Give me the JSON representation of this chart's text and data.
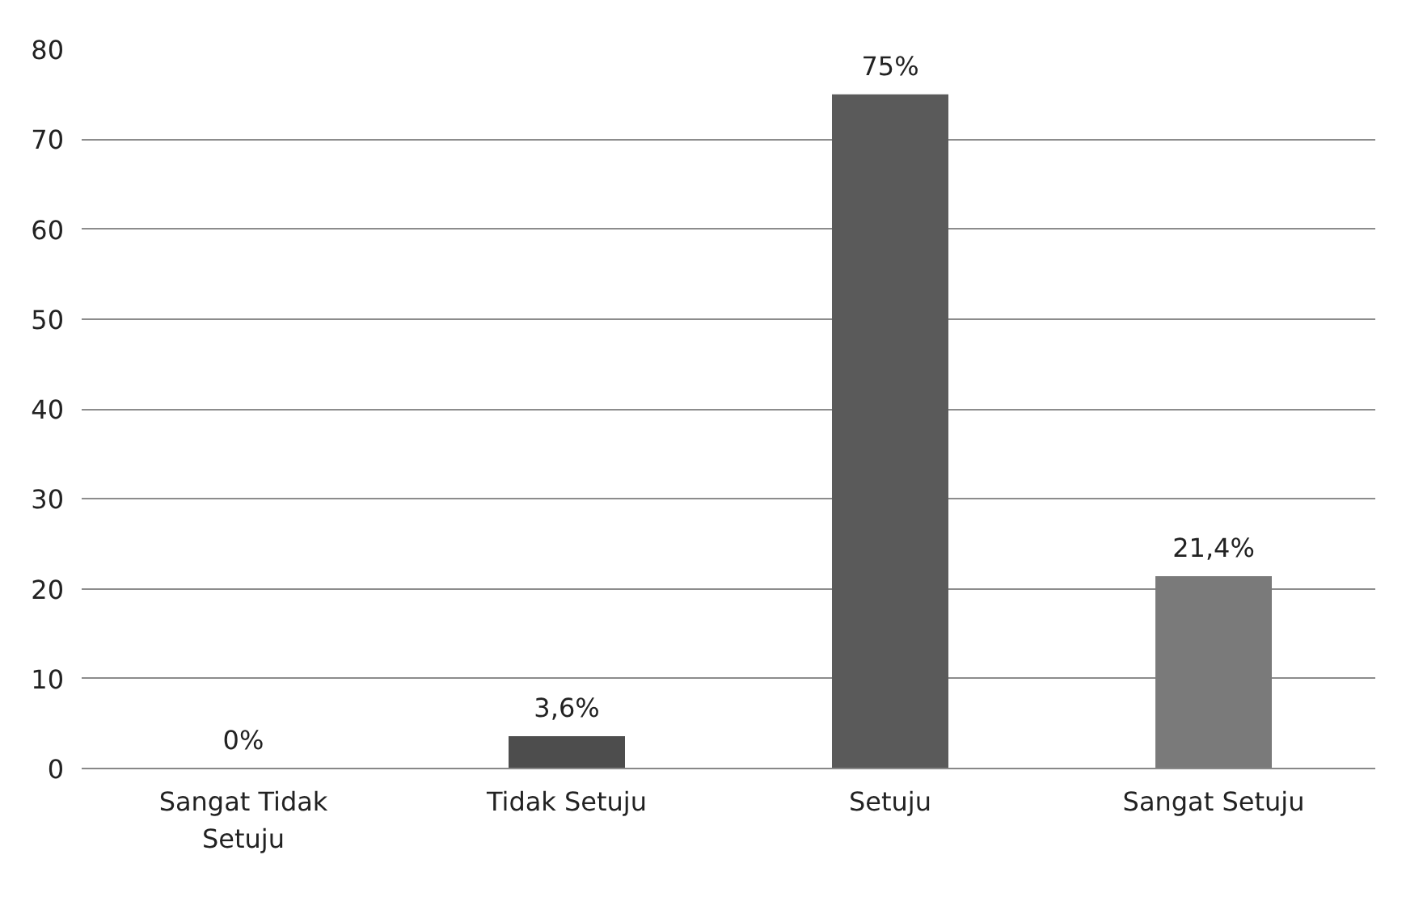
{
  "chart_data": {
    "type": "bar",
    "categories": [
      "Sangat Tidak Setuju",
      "Tidak Setuju",
      "Setuju",
      "Sangat Setuju"
    ],
    "values": [
      0,
      3.6,
      75,
      21.4
    ],
    "colors": [
      "#4d4d4d",
      "#4d4d4d",
      "#5a5a5a",
      "#7a7a7a"
    ],
    "value_labels": [
      "0%",
      "3,6%",
      "75%",
      "21,4%"
    ],
    "ylim": [
      0,
      80
    ],
    "yticks": [
      0,
      10,
      20,
      30,
      40,
      50,
      60,
      70,
      80
    ],
    "grid": "y"
  }
}
